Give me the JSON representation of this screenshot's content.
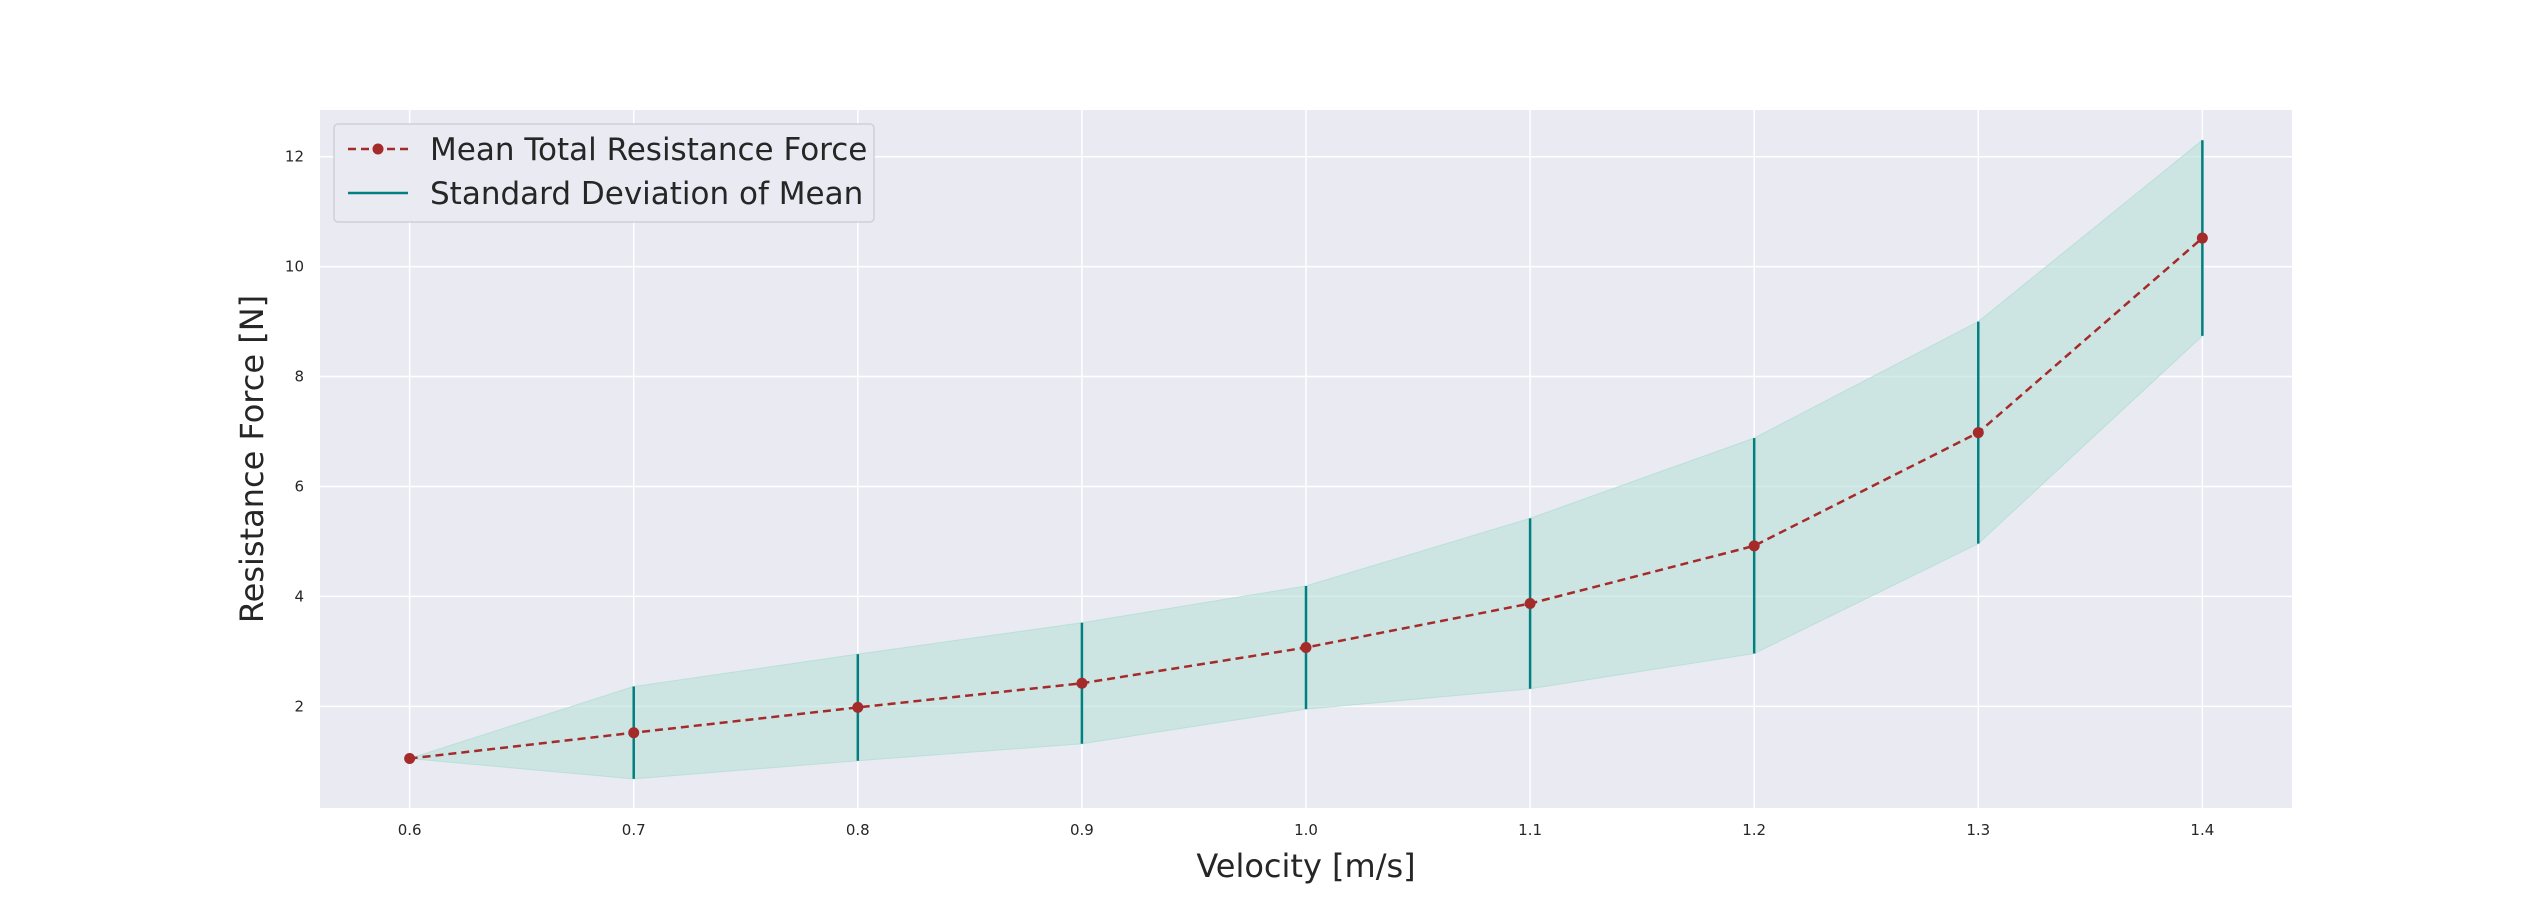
{
  "chart_data": {
    "type": "line",
    "xlabel": "Velocity [m/s]",
    "ylabel": "Resistance Force [N]",
    "x": [
      0.6,
      0.7,
      0.8,
      0.9,
      1.0,
      1.1,
      1.2,
      1.3,
      1.4
    ],
    "x_tick_labels": [
      "0.6",
      "0.7",
      "0.8",
      "0.9",
      "1.0",
      "1.1",
      "1.2",
      "1.3",
      "1.4"
    ],
    "y_tick_labels": [
      "2",
      "4",
      "6",
      "8",
      "10",
      "12"
    ],
    "y_ticks": [
      2,
      4,
      6,
      8,
      10,
      12
    ],
    "xlim": [
      0.56,
      1.44
    ],
    "ylim": [
      0.15,
      12.85
    ],
    "series": [
      {
        "name": "Mean Total Resistance Force",
        "values": [
          1.05,
          1.52,
          1.98,
          2.42,
          3.07,
          3.87,
          4.92,
          6.98,
          10.52
        ],
        "color": "#a52a2a",
        "line_style": "dashed",
        "marker": "circle"
      },
      {
        "name": "Standard Deviation of Mean",
        "std_dev": [
          0.0,
          0.84,
          0.97,
          1.1,
          1.12,
          1.55,
          1.96,
          2.02,
          1.78
        ],
        "color": "#008080",
        "style": "vertical error bars with shaded band",
        "band_color": "#b2dfd6"
      }
    ],
    "grid": true,
    "legend_position": "top-left",
    "background_color": "#eaeaf2",
    "grid_color": "#ffffff"
  }
}
